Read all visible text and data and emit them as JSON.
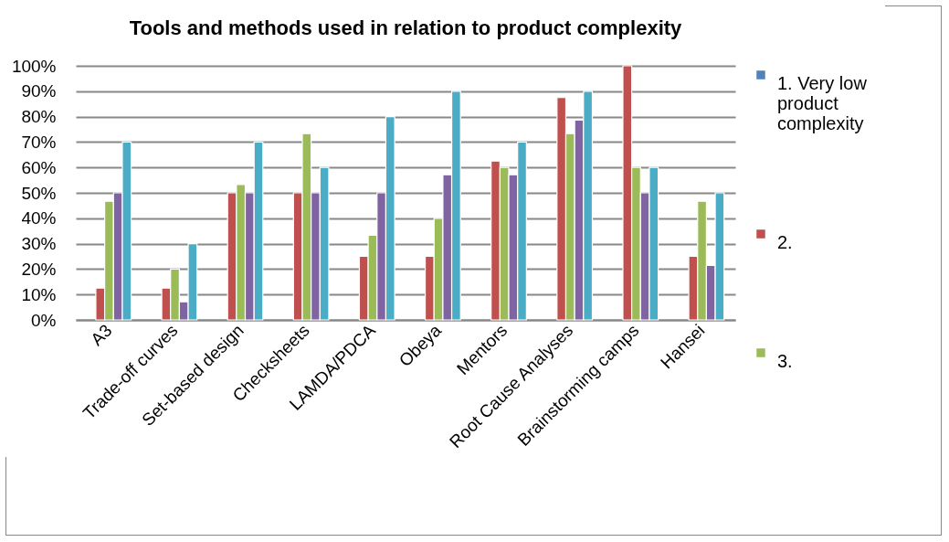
{
  "chart_data": {
    "type": "bar",
    "title": "Tools and methods used in relation to product complexity",
    "categories": [
      "A3",
      "Trade-off curves",
      "Set-based design",
      "Checksheets",
      "LAMDA/PDCA",
      "Obeya",
      "Mentors",
      "Root Cause Analyses",
      "Brainstorming camps",
      "Hansei"
    ],
    "series": [
      {
        "name": "1. Very low product complexity",
        "color": "#4f81bd",
        "values": [
          null,
          null,
          null,
          null,
          null,
          null,
          null,
          null,
          null,
          null
        ]
      },
      {
        "name": "2.",
        "color": "#c0504d",
        "values": [
          12.5,
          12.5,
          50,
          50,
          25,
          25,
          62.5,
          87.5,
          100,
          25
        ]
      },
      {
        "name": "3.",
        "color": "#9bbb59",
        "values": [
          46.7,
          20,
          53.3,
          73.3,
          33.3,
          40,
          60,
          73.3,
          60,
          46.7
        ]
      },
      {
        "color": "#8064a2",
        "values": [
          50,
          7.1,
          50,
          50,
          50,
          57.1,
          57.1,
          78.6,
          50,
          21.4
        ]
      },
      {
        "color": "#4bacc6",
        "values": [
          70,
          30,
          70,
          60,
          80,
          90,
          70,
          90,
          60,
          50
        ]
      }
    ],
    "ylim": [
      0,
      100
    ],
    "yticks": [
      {
        "value": 0,
        "label": "0%"
      },
      {
        "value": 10,
        "label": "10%"
      },
      {
        "value": 20,
        "label": "20%"
      },
      {
        "value": 30,
        "label": "30%"
      },
      {
        "value": 40,
        "label": "40%"
      },
      {
        "value": 50,
        "label": "50%"
      },
      {
        "value": 60,
        "label": "60%"
      },
      {
        "value": 70,
        "label": "70%"
      },
      {
        "value": 80,
        "label": "80%"
      },
      {
        "value": 90,
        "label": "90%"
      },
      {
        "value": 100,
        "label": "100%"
      }
    ],
    "grid": "y",
    "legend": "right"
  }
}
